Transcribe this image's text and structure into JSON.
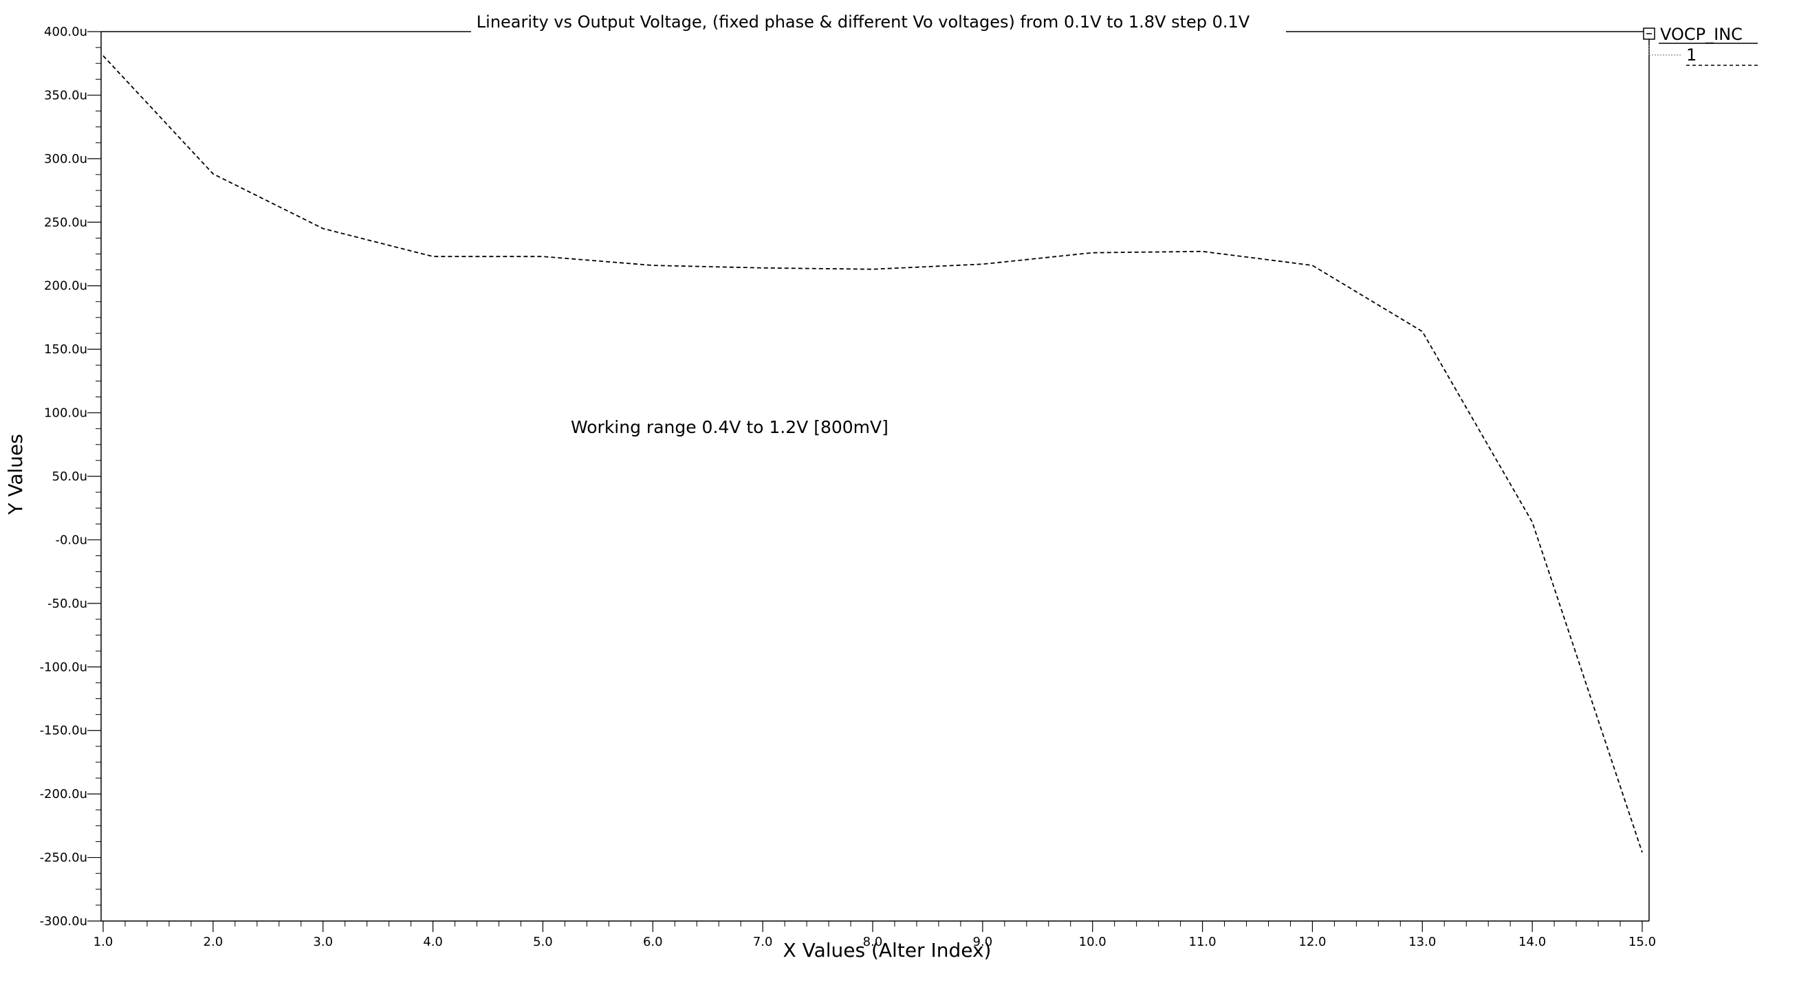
{
  "chart_data": {
    "type": "line",
    "title": "Linearity vs Output Voltage, (fixed phase & different Vo voltages) from 0.1V to 1.8V step 0.1V",
    "xlabel": "X Values (Alter Index)",
    "ylabel": "Y Values",
    "xlim": [
      1,
      15
    ],
    "ylim": [
      -300,
      400
    ],
    "x_ticks": [
      "1.0",
      "2.0",
      "3.0",
      "4.0",
      "5.0",
      "6.0",
      "7.0",
      "8.0",
      "9.0",
      "10.0",
      "11.0",
      "12.0",
      "13.0",
      "14.0",
      "15.0"
    ],
    "y_ticks": [
      "400.0u",
      "350.0u",
      "300.0u",
      "250.0u",
      "200.0u",
      "150.0u",
      "100.0u",
      "50.0u",
      "-0.0u",
      "-50.0u",
      "-100.0u",
      "-150.0u",
      "-200.0u",
      "-250.0u",
      "-300.0u"
    ],
    "y_tick_values": [
      400,
      350,
      300,
      250,
      200,
      150,
      100,
      50,
      0,
      -50,
      -100,
      -150,
      -200,
      -250,
      -300
    ],
    "grid": false,
    "legend_position": "top-right",
    "legend": {
      "group": "VOCP_INC",
      "entry": "1"
    },
    "annotation": "Working range 0.4V to 1.2V [800mV]",
    "series": [
      {
        "name": "1",
        "x": [
          1,
          2,
          3,
          4,
          5,
          6,
          7,
          8,
          9,
          10,
          11,
          12,
          13,
          14,
          15
        ],
        "values": [
          381,
          288,
          245,
          223,
          223,
          216,
          214,
          213,
          217,
          226,
          227,
          216,
          164,
          14,
          -246
        ],
        "style": "dashed",
        "color": "#000000"
      }
    ]
  }
}
